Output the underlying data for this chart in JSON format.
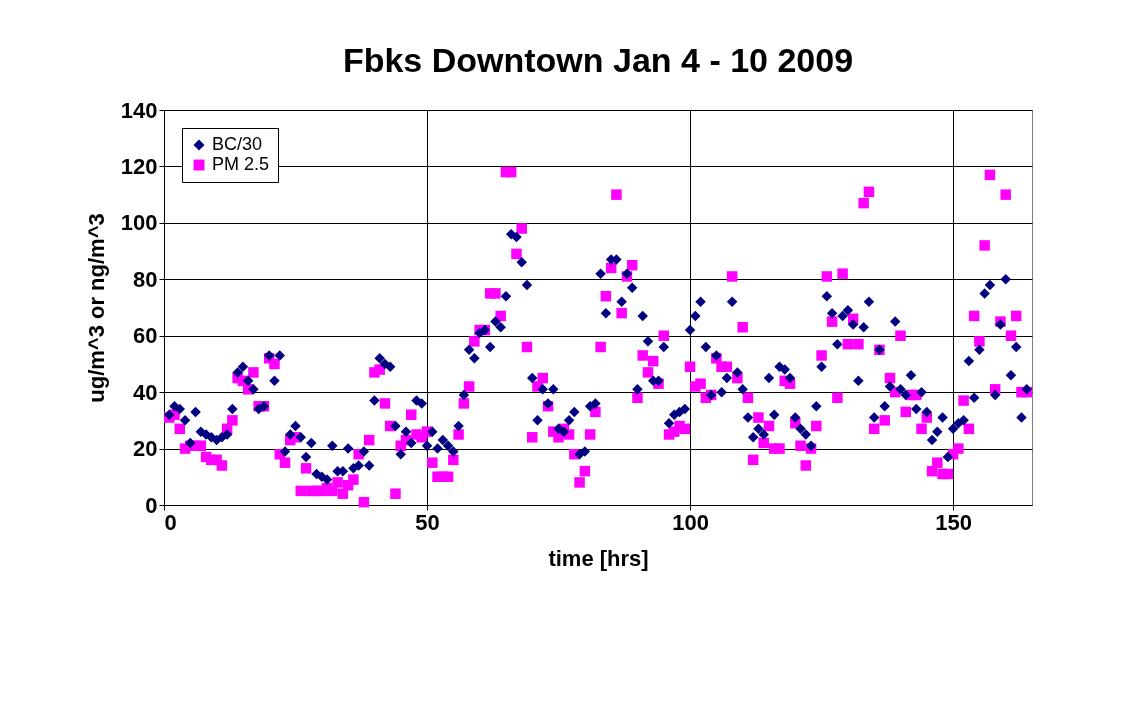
{
  "chart_data": {
    "type": "scatter",
    "title": "Fbks Downtown Jan 4 - 10  2009",
    "xlabel": "time [hrs]",
    "ylabel": "ug/m^3 or ng/m^3",
    "x": [
      1,
      2,
      3,
      4,
      5,
      6,
      7,
      8,
      9,
      10,
      11,
      12,
      13,
      14,
      15,
      16,
      17,
      18,
      19,
      20,
      21,
      22,
      23,
      24,
      25,
      26,
      27,
      28,
      29,
      30,
      31,
      32,
      33,
      34,
      35,
      36,
      37,
      38,
      39,
      40,
      41,
      42,
      43,
      44,
      45,
      46,
      47,
      48,
      49,
      50,
      51,
      52,
      53,
      54,
      55,
      56,
      57,
      58,
      59,
      60,
      61,
      62,
      63,
      64,
      65,
      66,
      67,
      68,
      69,
      70,
      71,
      72,
      73,
      74,
      75,
      76,
      77,
      78,
      79,
      80,
      81,
      82,
      83,
      84,
      85,
      86,
      87,
      88,
      89,
      90,
      91,
      92,
      93,
      94,
      95,
      96,
      97,
      98,
      99,
      100,
      101,
      102,
      103,
      104,
      105,
      106,
      107,
      108,
      109,
      110,
      111,
      112,
      113,
      114,
      115,
      116,
      117,
      118,
      119,
      120,
      121,
      122,
      123,
      124,
      125,
      126,
      127,
      128,
      129,
      130,
      131,
      132,
      133,
      134,
      135,
      136,
      137,
      138,
      139,
      140,
      141,
      142,
      143,
      144,
      145,
      146,
      147,
      148,
      149,
      150,
      151,
      152,
      153,
      154,
      155,
      156,
      157,
      158,
      159,
      160,
      161,
      162,
      163,
      164
    ],
    "series": [
      {
        "name": "BC/30",
        "color": "#000080",
        "marker": "diamond",
        "values": [
          32,
          35,
          34,
          30,
          22,
          33,
          26,
          25,
          24,
          23,
          24,
          25,
          34,
          47,
          49,
          44,
          41,
          34,
          35,
          53,
          44,
          53,
          19,
          25,
          28,
          24,
          17,
          22,
          11,
          10,
          9,
          21,
          12,
          12,
          20,
          13,
          14,
          19,
          14,
          37,
          52,
          50,
          49,
          28,
          18,
          26,
          22,
          37,
          36,
          21,
          26,
          20,
          23,
          21,
          19,
          28,
          39,
          55,
          52,
          61,
          62,
          56,
          65,
          63,
          74,
          96,
          95,
          86,
          78,
          45,
          30,
          41,
          36,
          41,
          27,
          26,
          30,
          33,
          18,
          19,
          35,
          36,
          82,
          68,
          87,
          87,
          72,
          82,
          77,
          41,
          67,
          58,
          44,
          44,
          56,
          29,
          32,
          33,
          34,
          62,
          67,
          72,
          56,
          39,
          53,
          40,
          45,
          72,
          47,
          41,
          31,
          24,
          27,
          25,
          45,
          32,
          49,
          48,
          45,
          31,
          27,
          25,
          21,
          35,
          49,
          74,
          68,
          57,
          67,
          69,
          64,
          44,
          63,
          72,
          31,
          55,
          35,
          42,
          65,
          41,
          39,
          46,
          34,
          40,
          33,
          23,
          26,
          31,
          17,
          27,
          29,
          30,
          51,
          38,
          55,
          75,
          78,
          39,
          64,
          80,
          46,
          56,
          31,
          41
        ]
      },
      {
        "name": "PM 2.5",
        "color": "#ff00ff",
        "marker": "square",
        "values": [
          31,
          32,
          27,
          20,
          21,
          21,
          21,
          17,
          16,
          16,
          14,
          27,
          30,
          45,
          44,
          41,
          47,
          35,
          35,
          52,
          50,
          18,
          15,
          23,
          24,
          5,
          13,
          5,
          5,
          5,
          6,
          5,
          8,
          4,
          7,
          9,
          18,
          1,
          23,
          47,
          48,
          36,
          28,
          4,
          21,
          23,
          32,
          25,
          24,
          26,
          15,
          10,
          10,
          10,
          16,
          25,
          36,
          42,
          58,
          62,
          62,
          75,
          75,
          67,
          118,
          118,
          89,
          98,
          56,
          24,
          42,
          45,
          35,
          26,
          24,
          27,
          25,
          18,
          8,
          12,
          25,
          33,
          56,
          74,
          84,
          110,
          68,
          81,
          85,
          38,
          53,
          47,
          51,
          43,
          60,
          25,
          26,
          28,
          27,
          49,
          42,
          43,
          38,
          39,
          52,
          49,
          49,
          81,
          45,
          63,
          38,
          16,
          31,
          22,
          28,
          20,
          20,
          44,
          43,
          29,
          21,
          14,
          20,
          28,
          53,
          81,
          65,
          38,
          82,
          57,
          66,
          57,
          107,
          111,
          27,
          55,
          30,
          45,
          40,
          60,
          33,
          39,
          39,
          27,
          31,
          12,
          15,
          11,
          11,
          18,
          20,
          37,
          27,
          67,
          58,
          92,
          117,
          41,
          65,
          110,
          60,
          67,
          40,
          40
        ]
      }
    ],
    "xlim": [
      0,
      165
    ],
    "xticks": [
      0,
      50,
      100,
      150
    ],
    "ylim": [
      0,
      140
    ],
    "yticks": [
      0,
      20,
      40,
      60,
      80,
      100,
      120,
      140
    ],
    "grid": true,
    "legend": "top left"
  }
}
